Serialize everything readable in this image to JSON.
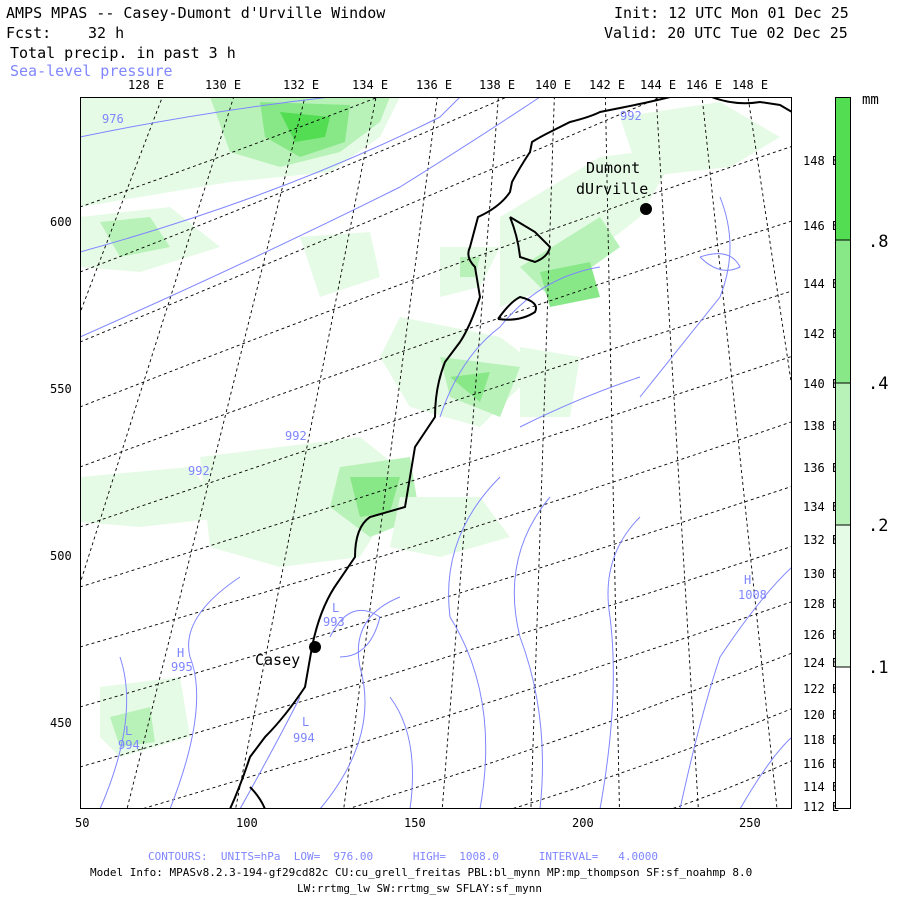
{
  "header": {
    "title": "AMPS MPAS -- Casey-Dumont d'Urville Window",
    "fcst_label": "Fcst:",
    "fcst_value": "32 h",
    "init": "Init: 12 UTC Mon 01 Dec 25",
    "valid": "Valid: 20 UTC Tue 02 Dec 25",
    "field1": "Total precip. in past 3 h",
    "field2": "Sea-level pressure"
  },
  "colors": {
    "precip_light": "#e6fbe6",
    "precip_mid": "#b9f2b9",
    "precip_strong": "#88e888",
    "precip_max": "#52dd52",
    "isobar": "#7f86ff",
    "coast": "#000000"
  },
  "axes": {
    "top_lon": [
      "128 E",
      "130 E",
      "132 E",
      "134 E",
      "136 E",
      "138 E",
      "140 E",
      "142 E",
      "144 E",
      "146 E",
      "148 E"
    ],
    "right_lon": [
      "148 E",
      "146 E",
      "144 E",
      "142 E",
      "140 E",
      "138 E",
      "136 E",
      "134 E",
      "132 E",
      "130 E",
      "128 E",
      "126 E",
      "124 E",
      "122 E",
      "120 E",
      "118 E",
      "116 E",
      "114 E",
      "112 E"
    ],
    "x_ticks": [
      "50",
      "100",
      "150",
      "200",
      "250"
    ],
    "y_ticks": [
      "600",
      "550",
      "500",
      "450"
    ]
  },
  "legend": {
    "unit": "mm",
    "levels": [
      ".8",
      ".4",
      ".2",
      ".1"
    ]
  },
  "places": [
    {
      "name": "Dumont"
    },
    {
      "name": "dUrville"
    },
    {
      "name": "Casey"
    }
  ],
  "isobar_labels": [
    "976",
    "992",
    "992",
    "992",
    "993",
    "995",
    "994",
    "994",
    "1008"
  ],
  "pressure_centers": [
    "L",
    "H",
    "L",
    "L",
    "H"
  ],
  "footer": {
    "contours": "CONTOURS:  UNITS=hPa  LOW=  976.00      HIGH=  1008.0      INTERVAL=   4.0000",
    "model": "Model Info: MPASv8.2.3-194-gf29cd82c CU:cu_grell_freitas PBL:bl_mynn MP:mp_thompson SF:sf_noahmp 8.0",
    "model2": "LW:rrtmg_lw SW:rrtmg_sw SFLAY:sf_mynn"
  }
}
